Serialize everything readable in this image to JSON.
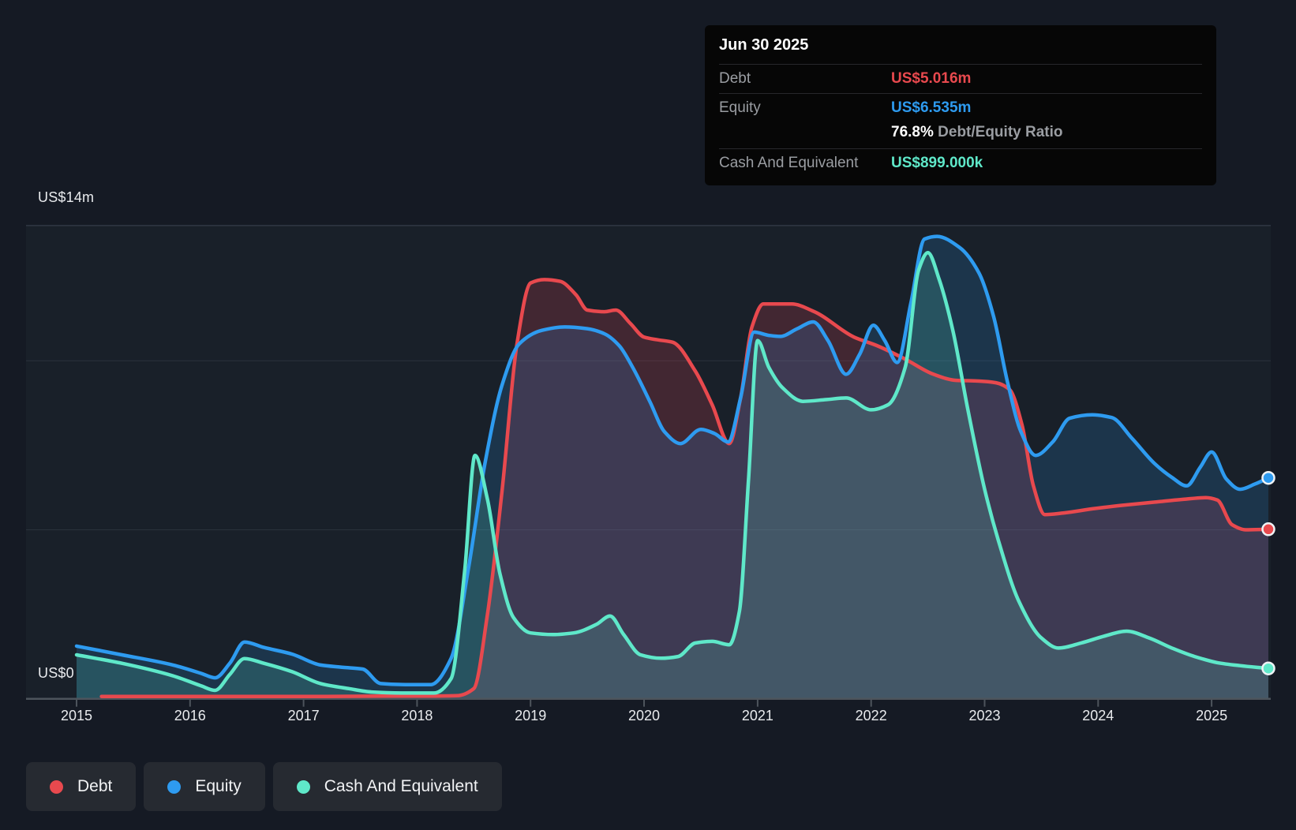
{
  "y_axis": {
    "top": "US$14m",
    "zero": "US$0"
  },
  "x_axis": {
    "ticks": [
      "2015",
      "2016",
      "2017",
      "2018",
      "2019",
      "2020",
      "2021",
      "2022",
      "2023",
      "2024",
      "2025"
    ]
  },
  "tooltip": {
    "date": "Jun 30 2025",
    "debt_label": "Debt",
    "debt_value": "US$5.016m",
    "equity_label": "Equity",
    "equity_value": "US$6.535m",
    "ratio_value": "76.8%",
    "ratio_label": "Debt/Equity Ratio",
    "cash_label": "Cash And Equivalent",
    "cash_value": "US$899.000k"
  },
  "legend": [
    {
      "label": "Debt",
      "color": "#e8494e"
    },
    {
      "label": "Equity",
      "color": "#2e9bf0"
    },
    {
      "label": "Cash And Equivalent",
      "color": "#5fe8c9"
    }
  ],
  "colors": {
    "debt": "#e8494e",
    "equity": "#2e9bf0",
    "cash": "#5fe8c9",
    "debt_fill": "rgba(228,70,90,0.20)",
    "equity_fill": "rgba(45,152,235,0.18)",
    "cash_fill": "rgba(95,232,201,0.17)",
    "plot_bg": "#192029",
    "grid": "#39414d",
    "axis": "#4d545c",
    "marker_ring": "#eef2f5"
  },
  "chart_data": {
    "type": "area",
    "title": "Debt to Equity History",
    "unit": "US$ millions",
    "x_axis": {
      "tick_years": [
        2015,
        2016,
        2017,
        2018,
        2019,
        2020,
        2021,
        2022,
        2023,
        2024,
        2025
      ],
      "start": 2015.0,
      "end": 2025.5
    },
    "y_axis": {
      "min": 0,
      "max": 14,
      "gridlines_musd": [
        5,
        10,
        14
      ],
      "top_label": "US$14m",
      "zero_label": "US$0"
    },
    "grid_on": true,
    "legend_position": "bottom-left",
    "last_point": {
      "date": "Jun 30 2025",
      "debt_musd": 5.016,
      "equity_musd": 6.535,
      "cash_musd": 0.899,
      "debt_equity_ratio_pct": 76.8
    },
    "series": [
      {
        "name": "Debt",
        "kind": "debt",
        "points": [
          [
            2015.22,
            0.07
          ],
          [
            2015.7,
            0.07
          ],
          [
            2016.2,
            0.07
          ],
          [
            2016.7,
            0.07
          ],
          [
            2017.2,
            0.07
          ],
          [
            2017.7,
            0.08
          ],
          [
            2018.1,
            0.08
          ],
          [
            2018.35,
            0.09
          ],
          [
            2018.5,
            0.3
          ],
          [
            2018.62,
            2.5
          ],
          [
            2018.75,
            6.2
          ],
          [
            2018.88,
            10.5
          ],
          [
            2019.0,
            12.3
          ],
          [
            2019.12,
            12.4
          ],
          [
            2019.26,
            12.35
          ],
          [
            2019.4,
            11.95
          ],
          [
            2019.5,
            11.5
          ],
          [
            2019.65,
            11.45
          ],
          [
            2019.75,
            11.5
          ],
          [
            2019.88,
            11.1
          ],
          [
            2020.0,
            10.7
          ],
          [
            2020.12,
            10.62
          ],
          [
            2020.25,
            10.55
          ],
          [
            2020.45,
            9.7
          ],
          [
            2020.6,
            8.7
          ],
          [
            2020.75,
            7.55
          ],
          [
            2020.85,
            8.9
          ],
          [
            2020.95,
            11.0
          ],
          [
            2021.05,
            11.68
          ],
          [
            2021.3,
            11.68
          ],
          [
            2021.5,
            11.45
          ],
          [
            2021.85,
            10.7
          ],
          [
            2022.05,
            10.45
          ],
          [
            2022.3,
            10.05
          ],
          [
            2022.55,
            9.6
          ],
          [
            2022.75,
            9.42
          ],
          [
            2022.95,
            9.4
          ],
          [
            2023.1,
            9.35
          ],
          [
            2023.22,
            9.15
          ],
          [
            2023.33,
            8.1
          ],
          [
            2023.43,
            6.3
          ],
          [
            2023.53,
            5.45
          ],
          [
            2023.7,
            5.5
          ],
          [
            2023.95,
            5.62
          ],
          [
            2024.2,
            5.72
          ],
          [
            2024.5,
            5.82
          ],
          [
            2024.75,
            5.9
          ],
          [
            2024.95,
            5.95
          ],
          [
            2025.05,
            5.88
          ],
          [
            2025.18,
            5.15
          ],
          [
            2025.3,
            5.0
          ],
          [
            2025.5,
            5.016
          ]
        ]
      },
      {
        "name": "Equity",
        "kind": "equity",
        "points": [
          [
            2015.0,
            1.56
          ],
          [
            2015.4,
            1.3
          ],
          [
            2015.85,
            1.0
          ],
          [
            2016.1,
            0.75
          ],
          [
            2016.22,
            0.62
          ],
          [
            2016.35,
            1.05
          ],
          [
            2016.48,
            1.68
          ],
          [
            2016.65,
            1.52
          ],
          [
            2016.9,
            1.32
          ],
          [
            2017.15,
            1.0
          ],
          [
            2017.35,
            0.93
          ],
          [
            2017.52,
            0.88
          ],
          [
            2017.68,
            0.45
          ],
          [
            2017.9,
            0.42
          ],
          [
            2018.12,
            0.42
          ],
          [
            2018.3,
            1.2
          ],
          [
            2018.45,
            3.8
          ],
          [
            2018.6,
            7.0
          ],
          [
            2018.75,
            9.3
          ],
          [
            2018.9,
            10.5
          ],
          [
            2019.1,
            10.9
          ],
          [
            2019.3,
            11.0
          ],
          [
            2019.5,
            10.95
          ],
          [
            2019.65,
            10.8
          ],
          [
            2019.78,
            10.45
          ],
          [
            2019.9,
            9.8
          ],
          [
            2020.05,
            8.8
          ],
          [
            2020.18,
            7.9
          ],
          [
            2020.32,
            7.55
          ],
          [
            2020.5,
            7.97
          ],
          [
            2020.62,
            7.85
          ],
          [
            2020.74,
            7.6
          ],
          [
            2020.85,
            8.9
          ],
          [
            2020.97,
            10.85
          ],
          [
            2021.1,
            10.75
          ],
          [
            2021.2,
            10.72
          ],
          [
            2021.35,
            10.95
          ],
          [
            2021.49,
            11.15
          ],
          [
            2021.62,
            10.6
          ],
          [
            2021.78,
            9.6
          ],
          [
            2021.9,
            10.2
          ],
          [
            2022.02,
            11.05
          ],
          [
            2022.12,
            10.6
          ],
          [
            2022.23,
            9.95
          ],
          [
            2022.35,
            11.7
          ],
          [
            2022.47,
            13.6
          ],
          [
            2022.58,
            13.68
          ],
          [
            2022.78,
            13.35
          ],
          [
            2022.95,
            12.6
          ],
          [
            2023.08,
            11.3
          ],
          [
            2023.2,
            9.4
          ],
          [
            2023.32,
            7.9
          ],
          [
            2023.45,
            7.2
          ],
          [
            2023.6,
            7.6
          ],
          [
            2023.75,
            8.3
          ],
          [
            2023.95,
            8.4
          ],
          [
            2024.12,
            8.32
          ],
          [
            2024.3,
            7.7
          ],
          [
            2024.5,
            6.95
          ],
          [
            2024.65,
            6.55
          ],
          [
            2024.78,
            6.3
          ],
          [
            2024.9,
            6.85
          ],
          [
            2025.0,
            7.3
          ],
          [
            2025.13,
            6.5
          ],
          [
            2025.25,
            6.2
          ],
          [
            2025.38,
            6.35
          ],
          [
            2025.5,
            6.535
          ]
        ]
      },
      {
        "name": "Cash And Equivalent",
        "kind": "cash",
        "points": [
          [
            2015.0,
            1.3
          ],
          [
            2015.4,
            1.05
          ],
          [
            2015.85,
            0.68
          ],
          [
            2016.1,
            0.38
          ],
          [
            2016.22,
            0.25
          ],
          [
            2016.35,
            0.72
          ],
          [
            2016.48,
            1.19
          ],
          [
            2016.65,
            1.05
          ],
          [
            2016.9,
            0.8
          ],
          [
            2017.15,
            0.45
          ],
          [
            2017.4,
            0.3
          ],
          [
            2017.6,
            0.2
          ],
          [
            2017.9,
            0.17
          ],
          [
            2018.15,
            0.17
          ],
          [
            2018.3,
            0.6
          ],
          [
            2018.42,
            3.8
          ],
          [
            2018.51,
            7.2
          ],
          [
            2018.62,
            5.9
          ],
          [
            2018.73,
            3.7
          ],
          [
            2018.85,
            2.4
          ],
          [
            2019.0,
            1.95
          ],
          [
            2019.2,
            1.9
          ],
          [
            2019.38,
            1.95
          ],
          [
            2019.58,
            2.2
          ],
          [
            2019.7,
            2.45
          ],
          [
            2019.82,
            1.9
          ],
          [
            2019.97,
            1.3
          ],
          [
            2020.15,
            1.2
          ],
          [
            2020.3,
            1.25
          ],
          [
            2020.45,
            1.65
          ],
          [
            2020.6,
            1.7
          ],
          [
            2020.75,
            1.6
          ],
          [
            2020.84,
            2.6
          ],
          [
            2020.92,
            6.5
          ],
          [
            2021.0,
            10.6
          ],
          [
            2021.1,
            9.8
          ],
          [
            2021.22,
            9.2
          ],
          [
            2021.4,
            8.8
          ],
          [
            2021.6,
            8.85
          ],
          [
            2021.78,
            8.9
          ],
          [
            2022.0,
            8.55
          ],
          [
            2022.15,
            8.7
          ],
          [
            2022.3,
            9.8
          ],
          [
            2022.42,
            12.7
          ],
          [
            2022.5,
            13.2
          ],
          [
            2022.6,
            12.4
          ],
          [
            2022.72,
            10.9
          ],
          [
            2022.85,
            8.6
          ],
          [
            2023.0,
            6.2
          ],
          [
            2023.12,
            4.7
          ],
          [
            2023.3,
            2.9
          ],
          [
            2023.5,
            1.8
          ],
          [
            2023.65,
            1.5
          ],
          [
            2023.85,
            1.65
          ],
          [
            2024.05,
            1.85
          ],
          [
            2024.25,
            2.0
          ],
          [
            2024.45,
            1.8
          ],
          [
            2024.65,
            1.5
          ],
          [
            2024.85,
            1.25
          ],
          [
            2025.05,
            1.07
          ],
          [
            2025.25,
            0.98
          ],
          [
            2025.4,
            0.93
          ],
          [
            2025.5,
            0.899
          ]
        ]
      }
    ]
  }
}
